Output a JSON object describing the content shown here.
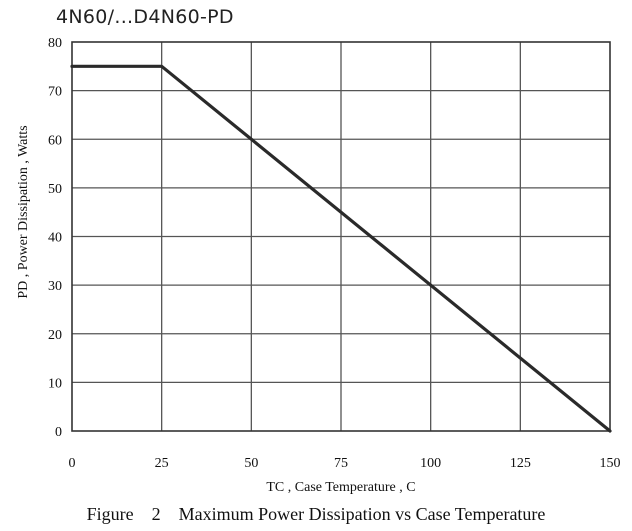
{
  "header": {
    "title": "4N60/...D4N60-PD"
  },
  "chart_data": {
    "type": "line",
    "x": [
      0,
      25,
      150
    ],
    "series": [
      {
        "values": [
          75,
          75,
          0
        ]
      }
    ],
    "xlabel": "TC , Case Temperature , C",
    "ylabel": "PD , Power Dissipation ,  Watts",
    "xlim": [
      0,
      150
    ],
    "ylim": [
      0,
      80
    ],
    "x_ticks": [
      "0",
      "25",
      "50",
      "75",
      "100",
      "125",
      "150"
    ],
    "y_ticks": [
      "0",
      "10",
      "20",
      "30",
      "40",
      "50",
      "60",
      "70",
      "80"
    ],
    "grid": true,
    "line_color": "#2a2a2a"
  },
  "caption": "Figure    2    Maximum Power Dissipation vs Case Temperature"
}
